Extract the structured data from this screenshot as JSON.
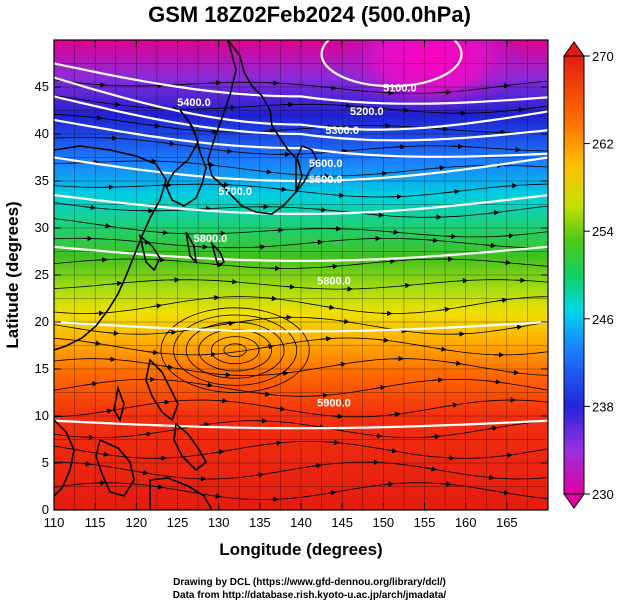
{
  "title": "GSM 18Z02Feb2024 (500.0hPa)",
  "x_axis": {
    "label": "Longitude (degrees)",
    "range": [
      110,
      170
    ],
    "ticks": [
      110,
      115,
      120,
      125,
      130,
      135,
      140,
      145,
      150,
      155,
      160,
      165
    ]
  },
  "y_axis": {
    "label": "Latitude  (degrees)",
    "range": [
      0,
      50
    ],
    "ticks": [
      0,
      5,
      10,
      15,
      20,
      25,
      30,
      35,
      40,
      45
    ]
  },
  "colorbar": {
    "min": 230,
    "max": 270,
    "ticks": [
      230,
      238,
      246,
      254,
      262,
      270
    ],
    "quantity": "temperature"
  },
  "contour_labels": [
    {
      "text": "5100.0",
      "lon": 152,
      "lat": 44.5
    },
    {
      "text": "5200.0",
      "lon": 148,
      "lat": 42.0
    },
    {
      "text": "5300.0",
      "lon": 145,
      "lat": 40.0
    },
    {
      "text": "5400.0",
      "lon": 127,
      "lat": 43.0
    },
    {
      "text": "5600.0",
      "lon": 143,
      "lat": 36.5
    },
    {
      "text": "5600.0",
      "lon": 143,
      "lat": 34.8
    },
    {
      "text": "5700.0",
      "lon": 132,
      "lat": 33.5
    },
    {
      "text": "5800.0",
      "lon": 129,
      "lat": 28.5
    },
    {
      "text": "5800.0",
      "lon": 144,
      "lat": 24.0
    },
    {
      "text": "5900.0",
      "lon": 144,
      "lat": 11.0
    }
  ],
  "credits": {
    "line1": "Drawing by DCL (https://www.gfd-dennou.org/library/dcl/)",
    "line2": "Data from http://database.rish.kyoto-u.ac.jp/arch/jmadata/"
  }
}
